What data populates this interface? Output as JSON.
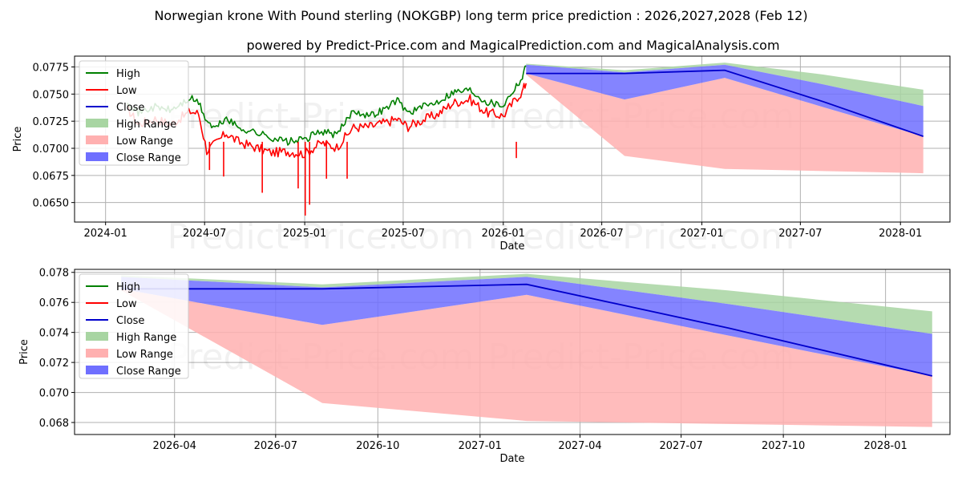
{
  "chart_data": [
    {
      "type": "line",
      "title": "Norwegian krone With Pound sterling (NOKGBP) long term price prediction : 2026,2027,2028 (Feb 12)",
      "subtitle": "powered by Predict-Price.com and MagicalPrediction.com and MagicalAnalysis.com",
      "xlabel": "Date",
      "ylabel": "Price",
      "watermark": "Predict-Price.com",
      "x_ticks": [
        "2024-01",
        "2024-07",
        "2025-01",
        "2025-07",
        "2026-01",
        "2026-07",
        "2027-01",
        "2027-07",
        "2028-01"
      ],
      "y_ticks": [
        "0.0650",
        "0.0675",
        "0.0700",
        "0.0725",
        "0.0750",
        "0.0775"
      ],
      "xlim": [
        "2023-11-05",
        "2028-04-01"
      ],
      "ylim": [
        0.0632,
        0.0785
      ],
      "legend": [
        "High",
        "Low",
        "Close",
        "High Range",
        "Low Range",
        "Close Range"
      ],
      "legend_position": "upper-left",
      "colors": {
        "high": "#008000",
        "low": "#ff0000",
        "close": "#0000cc",
        "high_range": "#a8d5a2",
        "low_range": "#ffb0b0",
        "close_range": "#6f6fff"
      },
      "history_high": [
        [
          "2024-02-10",
          0.0745
        ],
        [
          "2024-03-01",
          0.0733
        ],
        [
          "2024-04-01",
          0.0738
        ],
        [
          "2024-05-01",
          0.0735
        ],
        [
          "2024-06-05",
          0.0746
        ],
        [
          "2024-06-20",
          0.0742
        ],
        [
          "2024-07-05",
          0.0725
        ],
        [
          "2024-07-20",
          0.0718
        ],
        [
          "2024-08-10",
          0.0728
        ],
        [
          "2024-09-01",
          0.0719
        ],
        [
          "2024-10-01",
          0.0715
        ],
        [
          "2024-11-01",
          0.071
        ],
        [
          "2024-12-01",
          0.0706
        ],
        [
          "2025-01-01",
          0.0708
        ],
        [
          "2025-02-01",
          0.0716
        ],
        [
          "2025-03-01",
          0.0712
        ],
        [
          "2025-04-01",
          0.0735
        ],
        [
          "2025-05-01",
          0.073
        ],
        [
          "2025-06-01",
          0.0737
        ],
        [
          "2025-06-20",
          0.0745
        ],
        [
          "2025-07-10",
          0.0733
        ],
        [
          "2025-08-01",
          0.0737
        ],
        [
          "2025-09-01",
          0.0743
        ],
        [
          "2025-10-01",
          0.0752
        ],
        [
          "2025-11-01",
          0.0754
        ],
        [
          "2025-12-01",
          0.0743
        ],
        [
          "2026-01-01",
          0.074
        ],
        [
          "2026-01-25",
          0.0758
        ],
        [
          "2026-02-05",
          0.0765
        ],
        [
          "2026-02-12",
          0.0776
        ]
      ],
      "history_low": [
        [
          "2024-02-10",
          0.0738
        ],
        [
          "2024-03-01",
          0.0722
        ],
        [
          "2024-04-01",
          0.0727
        ],
        [
          "2024-05-01",
          0.0722
        ],
        [
          "2024-06-05",
          0.0734
        ],
        [
          "2024-06-20",
          0.0732
        ],
        [
          "2024-07-05",
          0.0698
        ],
        [
          "2024-07-20",
          0.0704
        ],
        [
          "2024-08-10",
          0.0714
        ],
        [
          "2024-09-01",
          0.0706
        ],
        [
          "2024-10-01",
          0.0701
        ],
        [
          "2024-11-01",
          0.0696
        ],
        [
          "2024-12-01",
          0.0697
        ],
        [
          "2025-01-01",
          0.0695
        ],
        [
          "2025-02-01",
          0.0705
        ],
        [
          "2025-03-01",
          0.0701
        ],
        [
          "2025-04-01",
          0.0719
        ],
        [
          "2025-05-01",
          0.072
        ],
        [
          "2025-06-01",
          0.0724
        ],
        [
          "2025-06-20",
          0.0727
        ],
        [
          "2025-07-10",
          0.072
        ],
        [
          "2025-08-01",
          0.0725
        ],
        [
          "2025-09-01",
          0.0731
        ],
        [
          "2025-10-01",
          0.0742
        ],
        [
          "2025-11-01",
          0.0745
        ],
        [
          "2025-12-01",
          0.0733
        ],
        [
          "2026-01-01",
          0.073
        ],
        [
          "2026-01-25",
          0.0746
        ],
        [
          "2026-02-05",
          0.0752
        ],
        [
          "2026-02-12",
          0.076
        ]
      ],
      "low_spikes": [
        [
          "2024-07-10",
          0.068
        ],
        [
          "2024-08-05",
          0.0674
        ],
        [
          "2024-10-15",
          0.0659
        ],
        [
          "2024-12-20",
          0.0663
        ],
        [
          "2025-01-02",
          0.0638
        ],
        [
          "2025-01-10",
          0.0648
        ],
        [
          "2025-02-10",
          0.0672
        ],
        [
          "2025-03-20",
          0.0672
        ],
        [
          "2026-01-25",
          0.0691
        ]
      ],
      "forecast_dates": [
        "2026-02-12",
        "2026-08-12",
        "2027-02-12",
        "2027-08-12",
        "2028-02-12"
      ],
      "forecast": {
        "close": [
          0.0769,
          0.0769,
          0.0772,
          0.0743,
          0.0711
        ],
        "high_range_upper": [
          0.0778,
          0.0772,
          0.0779,
          0.0768,
          0.0754
        ],
        "close_range_upper": [
          0.0777,
          0.077,
          0.0777,
          0.0759,
          0.0739
        ],
        "close_range_lower": [
          0.0769,
          0.0745,
          0.0765,
          0.0738,
          0.0711
        ],
        "low_range_lower": [
          0.0768,
          0.0693,
          0.0681,
          0.0679,
          0.0677
        ]
      }
    },
    {
      "type": "area",
      "title": "",
      "xlabel": "Date",
      "ylabel": "Price",
      "x_ticks": [
        "2026-04",
        "2026-07",
        "2026-10",
        "2027-01",
        "2027-04",
        "2027-07",
        "2027-10",
        "2028-01"
      ],
      "y_ticks": [
        "0.068",
        "0.070",
        "0.072",
        "0.074",
        "0.076",
        "0.078"
      ],
      "xlim": [
        "2026-01-01",
        "2028-02-28"
      ],
      "ylim": [
        0.0672,
        0.0782
      ],
      "legend": [
        "High",
        "Low",
        "Close",
        "High Range",
        "Low Range",
        "Close Range"
      ],
      "legend_position": "upper-left"
    }
  ]
}
